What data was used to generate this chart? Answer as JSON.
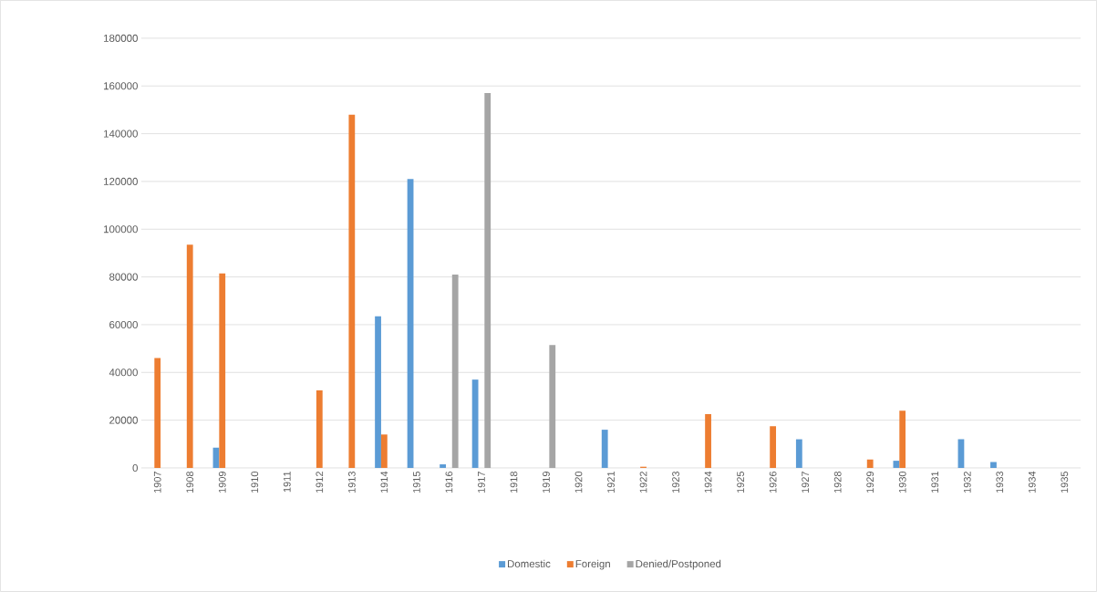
{
  "chart_data": {
    "type": "bar",
    "categories": [
      "1907",
      "1908",
      "1909",
      "1910",
      "1911",
      "1912",
      "1913",
      "1914",
      "1915",
      "1916",
      "1917",
      "1918",
      "1919",
      "1920",
      "1921",
      "1922",
      "1923",
      "1924",
      "1925",
      "1926",
      "1927",
      "1928",
      "1929",
      "1930",
      "1931",
      "1932",
      "1933",
      "1934",
      "1935"
    ],
    "series": [
      {
        "name": "Domestic",
        "color": "#5b9bd5",
        "values": [
          null,
          null,
          8500,
          null,
          null,
          null,
          null,
          63500,
          121000,
          1500,
          37000,
          null,
          null,
          null,
          16000,
          null,
          null,
          null,
          null,
          null,
          12000,
          null,
          null,
          3000,
          null,
          12000,
          2500,
          null,
          null
        ]
      },
      {
        "name": "Foreign",
        "color": "#ed7d31",
        "values": [
          46000,
          93500,
          81500,
          null,
          null,
          32500,
          148000,
          14000,
          null,
          null,
          null,
          null,
          null,
          null,
          null,
          500,
          null,
          22500,
          null,
          17500,
          null,
          null,
          3500,
          24000,
          null,
          null,
          null,
          null,
          null
        ]
      },
      {
        "name": "Denied/Postponed",
        "color": "#a5a5a5",
        "values": [
          null,
          null,
          null,
          null,
          null,
          null,
          null,
          null,
          null,
          81000,
          157000,
          null,
          51500,
          null,
          null,
          null,
          null,
          null,
          null,
          null,
          null,
          null,
          null,
          null,
          null,
          null,
          null,
          null,
          null
        ]
      }
    ],
    "ylim": [
      0,
      180000
    ],
    "yticks": [
      0,
      20000,
      40000,
      60000,
      80000,
      100000,
      120000,
      140000,
      160000,
      180000
    ],
    "grid": "y",
    "legend": "bottom"
  }
}
